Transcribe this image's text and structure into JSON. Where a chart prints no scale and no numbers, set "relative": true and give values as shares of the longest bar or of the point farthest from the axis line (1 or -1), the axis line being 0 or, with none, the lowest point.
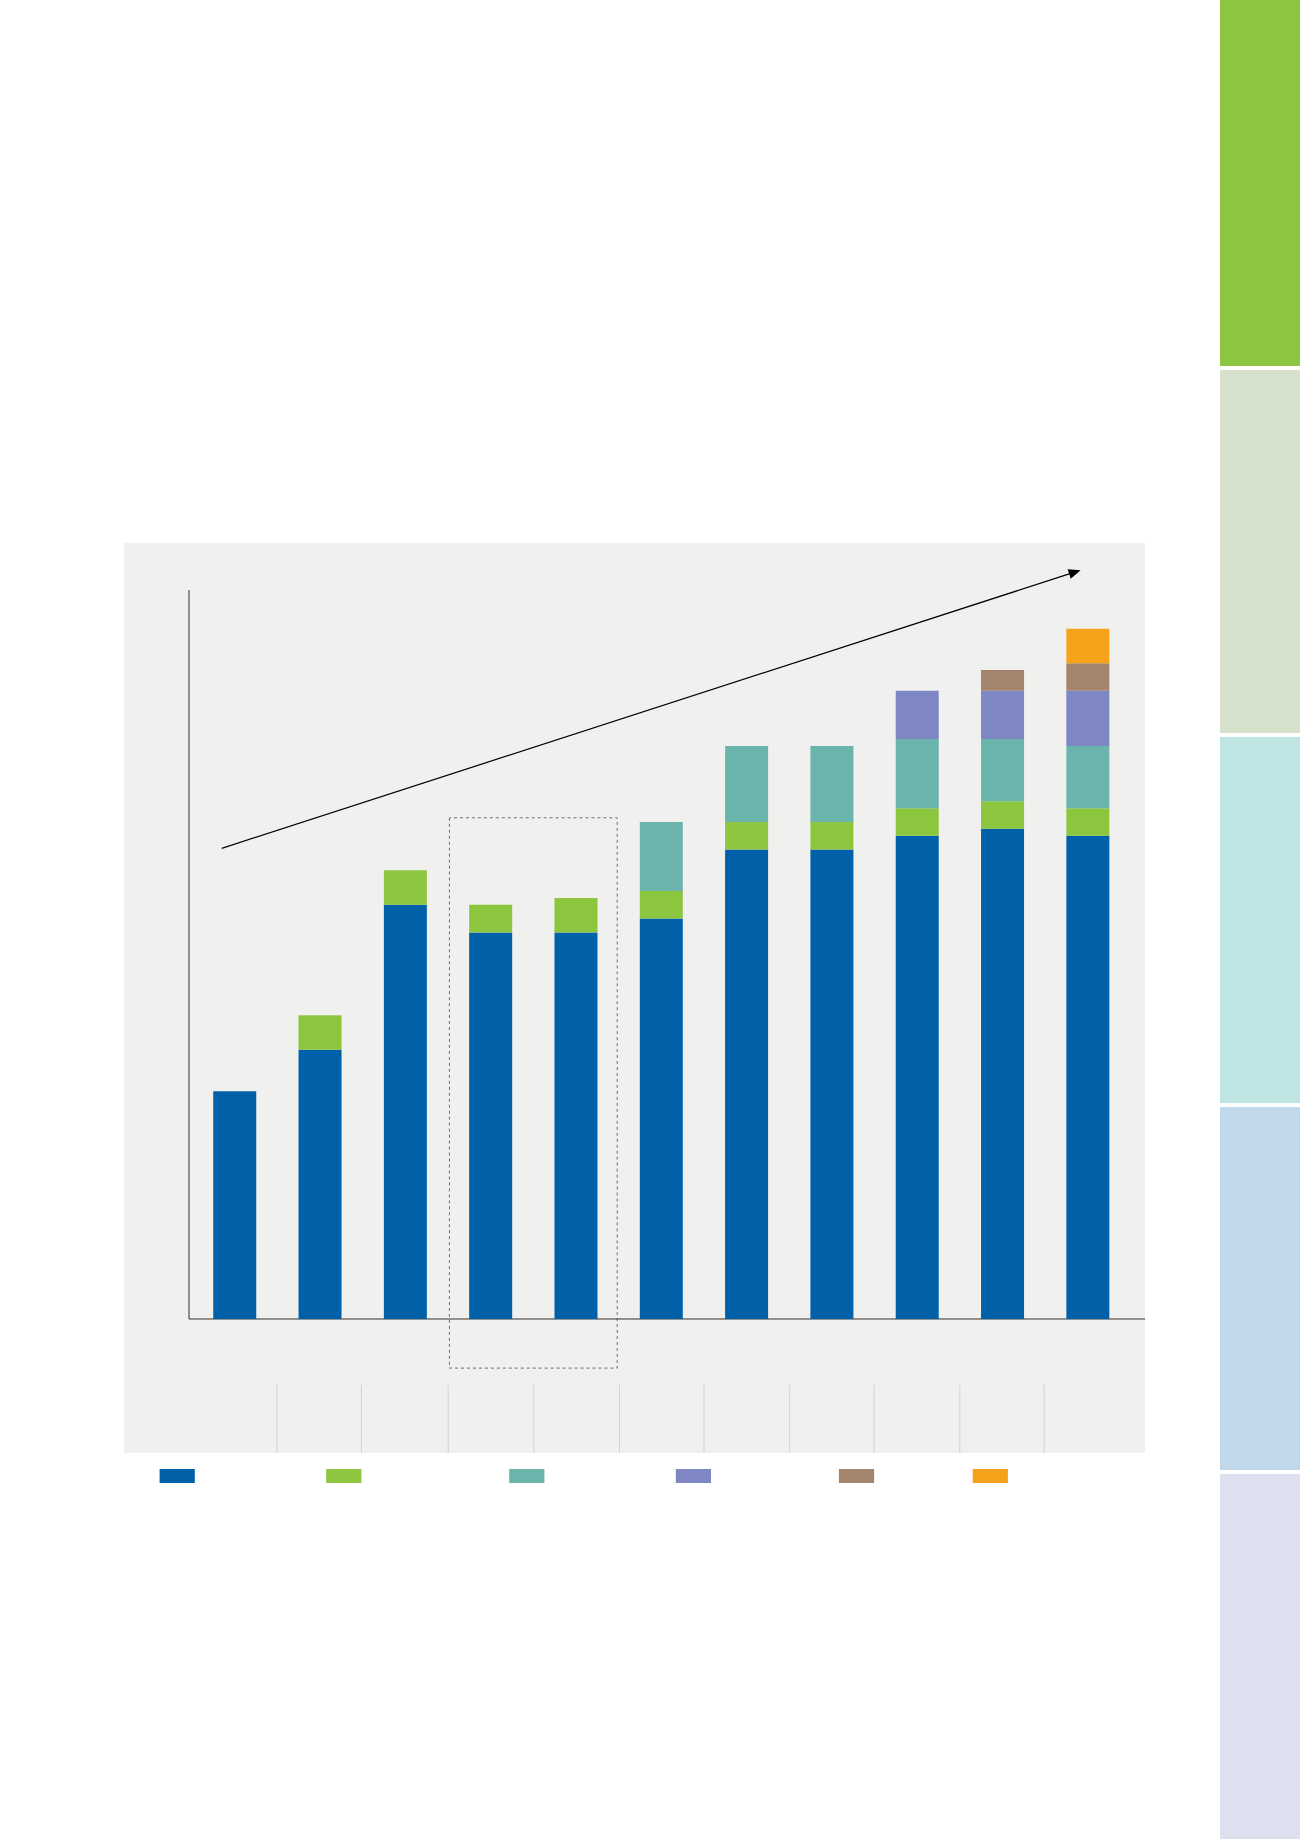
{
  "chart_data": {
    "type": "bar",
    "relative": true,
    "stacked": true,
    "categories": [
      null,
      null,
      null,
      null,
      null,
      null,
      null,
      null,
      null,
      null,
      null
    ],
    "series": [
      {
        "color": "#0060a8",
        "values": [
          0.33,
          0.39,
          0.6,
          0.56,
          0.56,
          0.58,
          0.68,
          0.68,
          0.7,
          0.71,
          0.7
        ]
      },
      {
        "color": "#8cc63f",
        "values": [
          null,
          0.05,
          0.05,
          0.04,
          0.05,
          0.04,
          0.04,
          0.04,
          0.04,
          0.04,
          0.04
        ]
      },
      {
        "color": "#6ab4ac",
        "values": [
          null,
          null,
          null,
          null,
          null,
          0.1,
          0.11,
          0.11,
          0.1,
          0.09,
          0.09
        ]
      },
      {
        "color": "#7f86c4",
        "values": [
          null,
          null,
          null,
          null,
          null,
          null,
          null,
          null,
          0.07,
          0.07,
          0.08
        ]
      },
      {
        "color": "#a4846a",
        "values": [
          null,
          null,
          null,
          null,
          null,
          null,
          null,
          null,
          null,
          0.03,
          0.04
        ]
      },
      {
        "color": "#f7a21b",
        "values": [
          null,
          null,
          null,
          null,
          null,
          null,
          null,
          null,
          null,
          null,
          0.05
        ]
      }
    ]
  }
}
